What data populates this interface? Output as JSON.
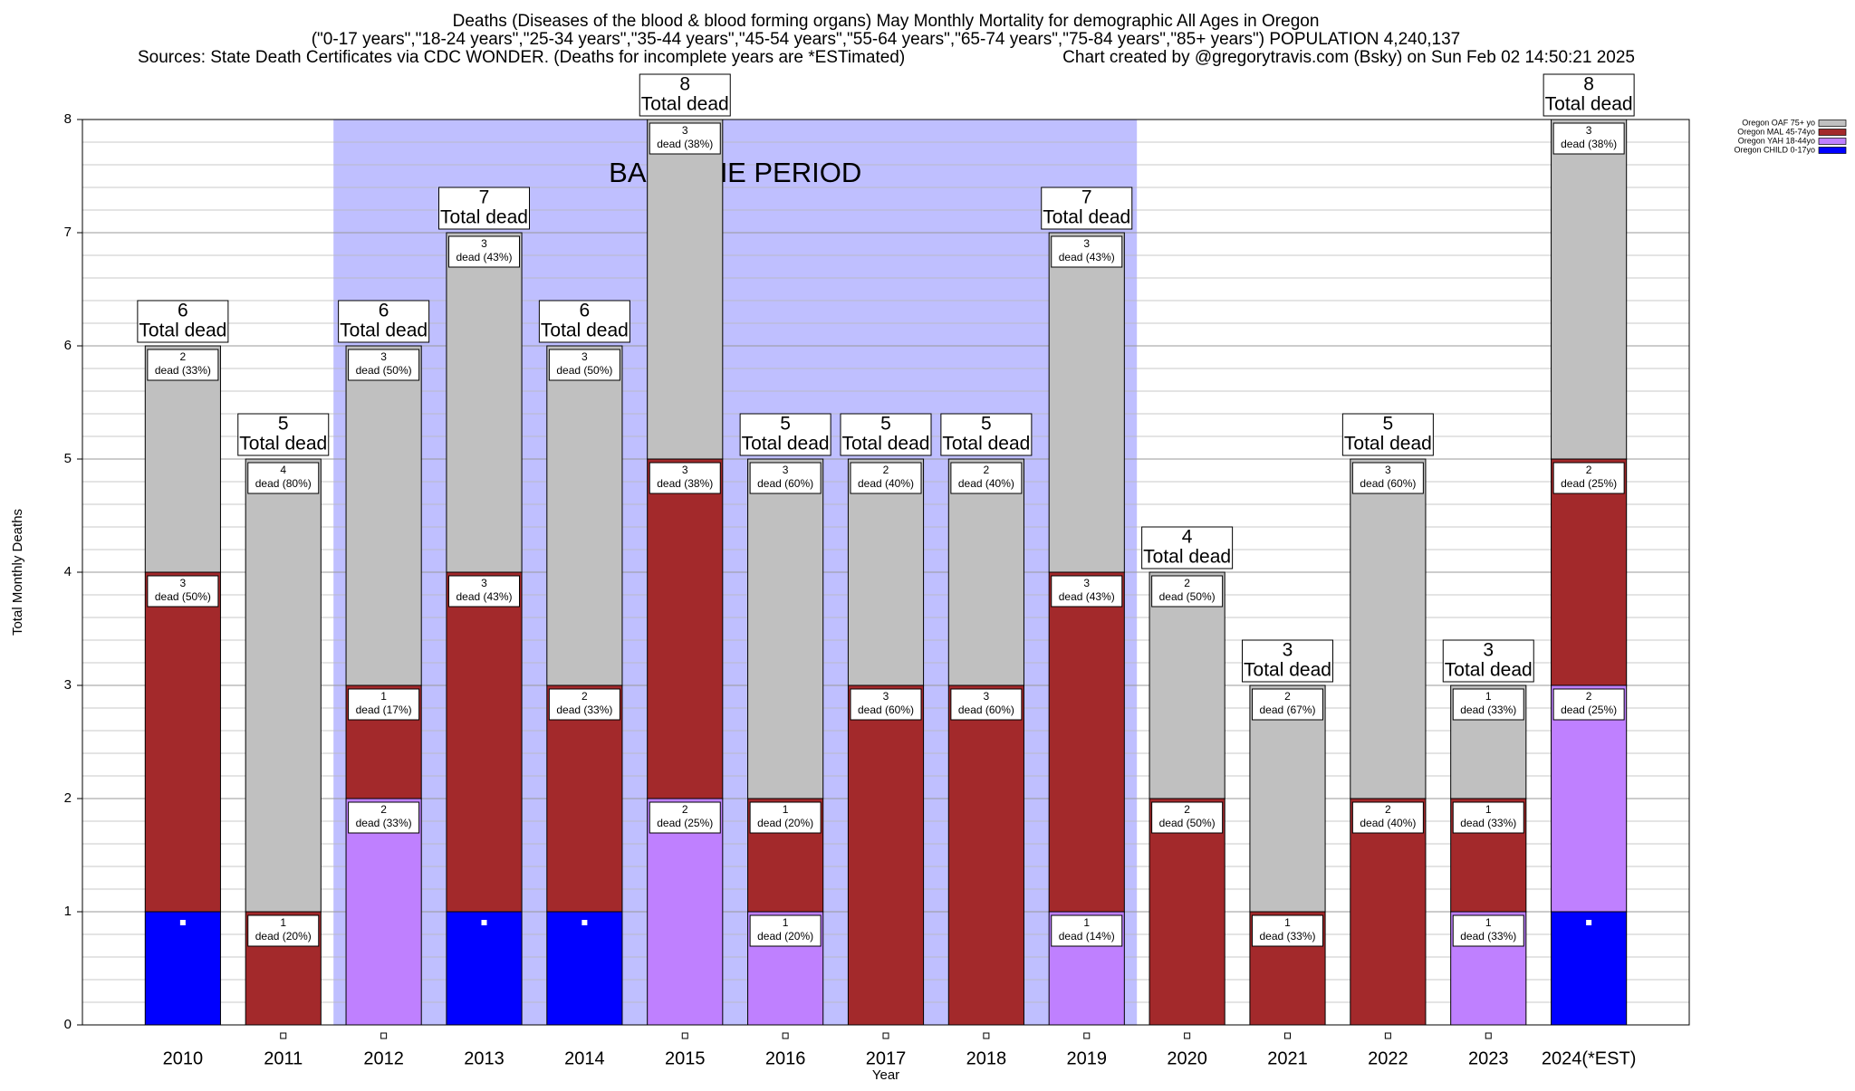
{
  "chart_data": {
    "type": "stacked_bar",
    "title": "Deaths (Diseases of the blood & blood forming organs) May Monthly Mortality for demographic All Ages in Oregon",
    "subtitle": "(\"0-17 years\",\"18-24 years\",\"25-34 years\",\"35-44 years\",\"45-54 years\",\"55-64 years\",\"65-74 years\",\"75-84 years\",\"85+ years\") POPULATION 4,240,137",
    "sources": "Sources: State Death Certificates via CDC WONDER. (Deaths for incomplete years are *ESTimated)",
    "credit": "Chart created by @gregorytravis.com (Bsky) on Sun Feb 02 14:50:21 2025",
    "y_label": "Total Monthly Deaths",
    "x_label": "Year",
    "categories": [
      "2010",
      "2011",
      "2012",
      "2013",
      "2014",
      "2015",
      "2016",
      "2017",
      "2018",
      "2019",
      "2020",
      "2021",
      "2022",
      "2023",
      "2024(*EST)"
    ],
    "ylim": [
      0,
      8
    ],
    "yticks": [
      0,
      1,
      2,
      3,
      4,
      5,
      6,
      7,
      8
    ],
    "grid": true,
    "legend_position": "top-right",
    "baseline": {
      "label": "BASELINE PERIOD",
      "start": "2012",
      "end": "2019"
    },
    "total_label": "Total dead",
    "totals": [
      6,
      5,
      6,
      7,
      6,
      8,
      5,
      5,
      5,
      7,
      4,
      3,
      5,
      3,
      8
    ],
    "series": [
      {
        "name": "Oregon CHILD 0-17yo",
        "color": "#0000ff",
        "values": [
          1,
          0,
          0,
          1,
          1,
          0,
          0,
          0,
          0,
          0,
          0,
          0,
          0,
          0,
          1
        ],
        "percent_labels": [
          null,
          null,
          null,
          null,
          null,
          null,
          null,
          null,
          null,
          null,
          null,
          null,
          null,
          null,
          null
        ]
      },
      {
        "name": "Oregon YAH 18-44yo",
        "color": "#bf80ff",
        "values": [
          0,
          0,
          2,
          0,
          0,
          2,
          1,
          0,
          0,
          1,
          0,
          0,
          0,
          1,
          2
        ],
        "percent_labels": [
          null,
          null,
          "dead (33%)",
          null,
          null,
          "dead (25%)",
          "dead (20%)",
          null,
          null,
          "dead (14%)",
          null,
          null,
          null,
          "dead (33%)",
          "dead (25%)"
        ]
      },
      {
        "name": "Oregon MAL 45-74yo",
        "color": "#a3292b",
        "values": [
          3,
          1,
          1,
          3,
          2,
          3,
          1,
          3,
          3,
          3,
          2,
          1,
          2,
          1,
          2
        ],
        "percent_labels": [
          "dead (50%)",
          "dead (20%)",
          "dead (17%)",
          "dead (43%)",
          "dead (33%)",
          "dead (38%)",
          "dead (20%)",
          "dead (60%)",
          "dead (60%)",
          "dead (43%)",
          "dead (50%)",
          "dead (33%)",
          "dead (40%)",
          "dead (33%)",
          "dead (25%)"
        ]
      },
      {
        "name": "Oregon OAF 75+ yo",
        "color": "#c0c0c0",
        "values": [
          2,
          4,
          3,
          3,
          3,
          3,
          3,
          2,
          2,
          3,
          2,
          2,
          3,
          1,
          3
        ],
        "percent_labels": [
          "dead (33%)",
          "dead (80%)",
          "dead (50%)",
          "dead (43%)",
          "dead (50%)",
          "dead (38%)",
          "dead (60%)",
          "dead (40%)",
          "dead (40%)",
          "dead (43%)",
          "dead (50%)",
          "dead (67%)",
          "dead (60%)",
          "dead (33%)",
          "dead (38%)"
        ]
      }
    ]
  }
}
